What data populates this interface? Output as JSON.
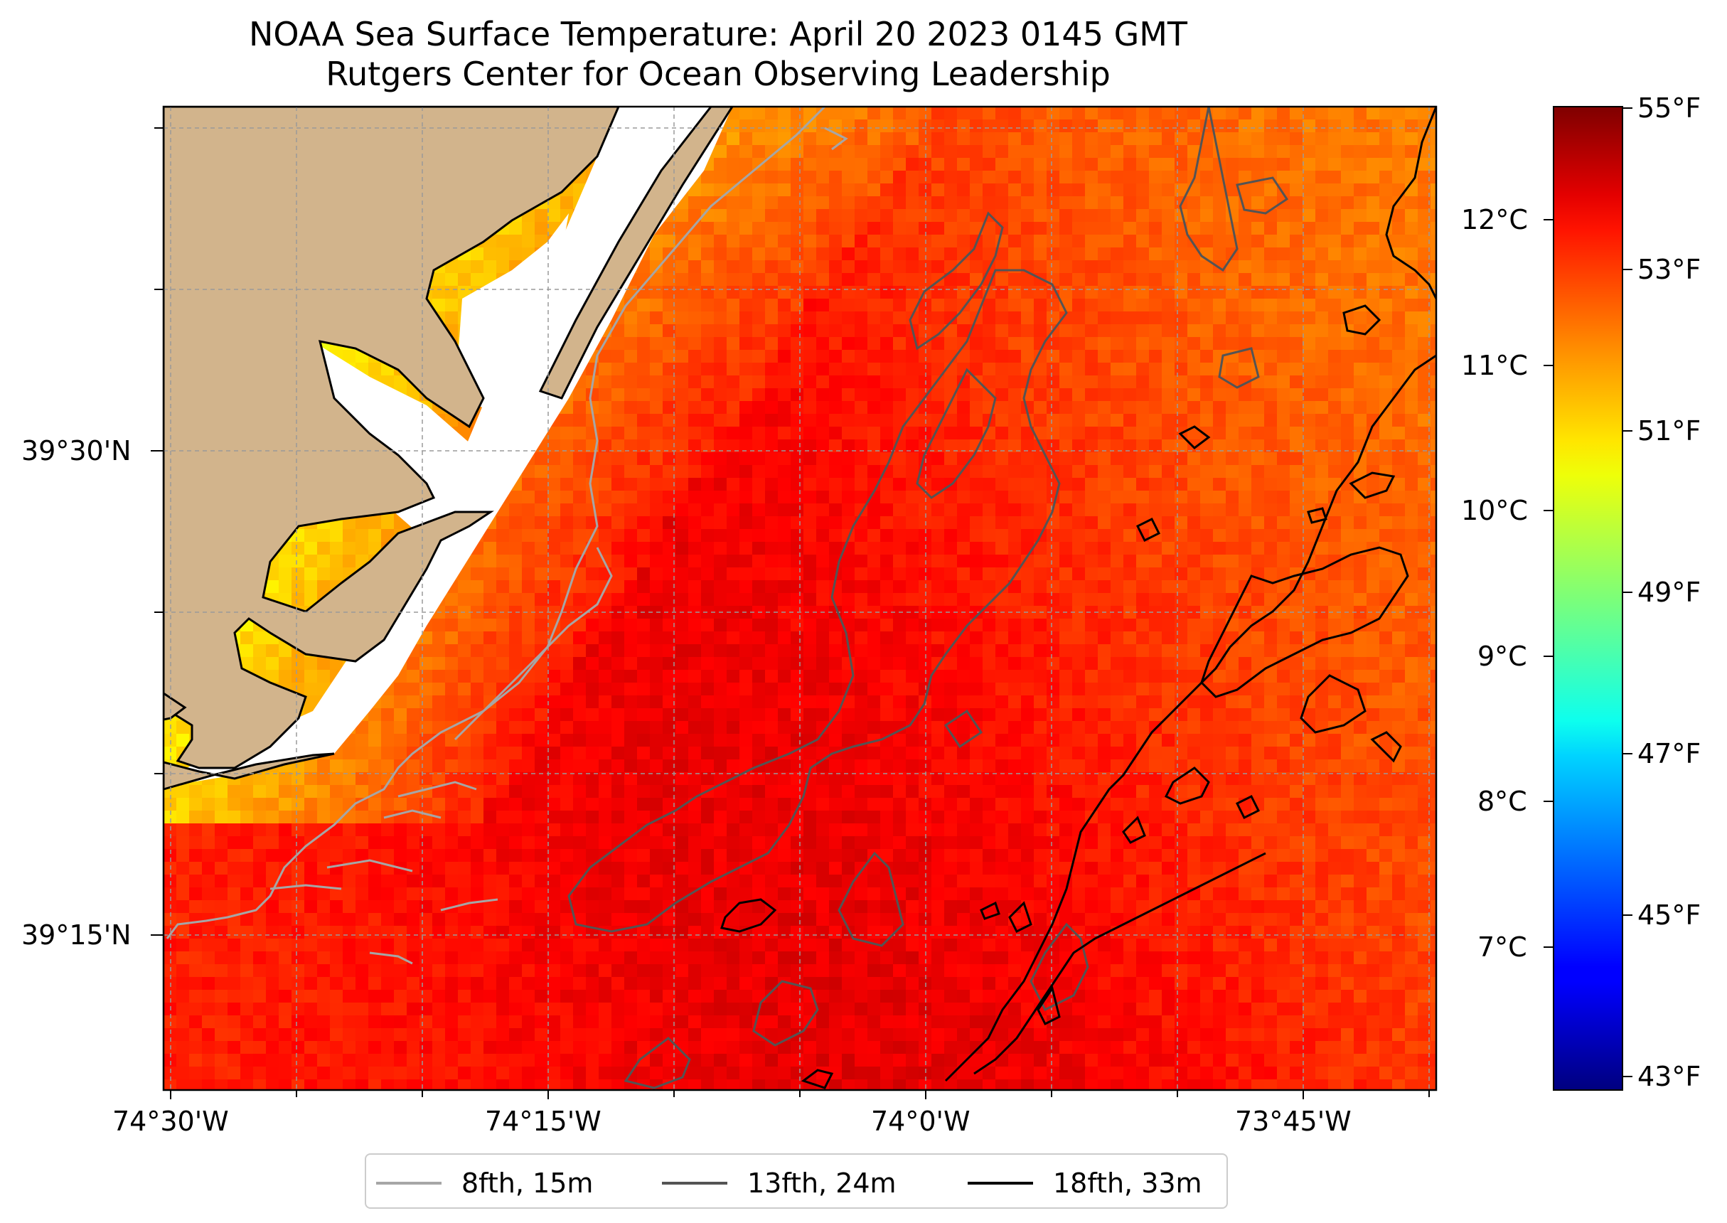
{
  "title_line1": "NOAA Sea Surface Temperature: April 20 2023 0145 GMT",
  "title_line2": "Rutgers Center for Ocean Observing Leadership",
  "colors": {
    "land": "#d2b48c",
    "coastline": "#000000",
    "no_data": "#ffffff",
    "grid": "#999999",
    "contour_8fth": "#a6a6a6",
    "contour_13fth": "#545454",
    "contour_18fth": "#000000"
  },
  "axes": {
    "x_ticks": [
      "74°30'W",
      "74°15'W",
      "74°0'W",
      "73°45'W"
    ],
    "y_ticks": [
      "39°30'N",
      "39°15'N"
    ]
  },
  "colorbar": {
    "colormap": "jet",
    "range_f": [
      42.8,
      55.2
    ],
    "fahrenheit_labels": [
      "55°F",
      "53°F",
      "51°F",
      "49°F",
      "47°F",
      "45°F",
      "43°F"
    ],
    "celsius_labels": [
      "12°C",
      "11°C",
      "10°C",
      "9°C",
      "8°C",
      "7°C"
    ]
  },
  "legend": {
    "items": [
      {
        "label": "8fth, 15m",
        "color": "#a6a6a6"
      },
      {
        "label": "13fth, 24m",
        "color": "#545454"
      },
      {
        "label": "18fth, 33m",
        "color": "#000000"
      }
    ]
  }
}
